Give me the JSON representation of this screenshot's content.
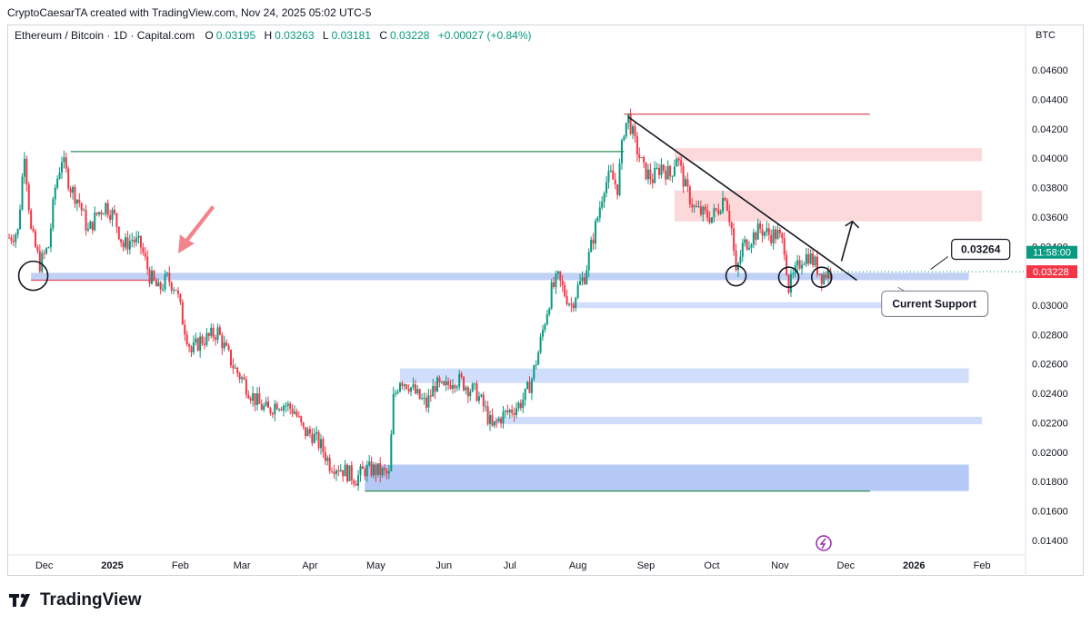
{
  "header": {
    "attribution": "CryptoCaesarTA created with TradingView.com, Nov 24, 2025 05:02 UTC-5"
  },
  "symbol": {
    "name": "Ethereum / Bitcoin · 1D · Capital.com",
    "open_label": "O",
    "open": "0.03195",
    "high_label": "H",
    "high": "0.03263",
    "low_label": "L",
    "low": "0.03181",
    "close_label": "C",
    "close": "0.03228",
    "change": "+0.00027 (+0.84%)"
  },
  "currency": "BTC",
  "footer": {
    "brand": "TradingView",
    "logo_icon": "tradingview-logo-icon"
  },
  "colors": {
    "up": "#089981",
    "down": "#f23645",
    "zone_blue": "#b6c9f5",
    "zone_red": "#fbd3d5",
    "line_green": "#2e8b57",
    "line_red": "#e05060",
    "arrow_red": "#f0777f"
  },
  "chart_data": {
    "type": "candlestick",
    "title": "Ethereum / Bitcoin · 1D · Capital.com",
    "ylim": [
      0.013,
      0.0478
    ],
    "yticks": [
      "0.04600",
      "0.04400",
      "0.04200",
      "0.04000",
      "0.03800",
      "0.03600",
      "0.03400",
      "0.03000",
      "0.02800",
      "0.02600",
      "0.02400",
      "0.02200",
      "0.02000",
      "0.01800",
      "0.01600",
      "0.01400"
    ],
    "x_axis": {
      "start": "2024-11-15",
      "end": "2026-02-20",
      "ticks": [
        {
          "label": "Dec",
          "date": "2024-12-01"
        },
        {
          "label": "2025",
          "date": "2025-01-01",
          "bold": true
        },
        {
          "label": "Feb",
          "date": "2025-02-01"
        },
        {
          "label": "Mar",
          "date": "2025-03-01"
        },
        {
          "label": "Apr",
          "date": "2025-04-01"
        },
        {
          "label": "May",
          "date": "2025-05-01"
        },
        {
          "label": "Jun",
          "date": "2025-06-01"
        },
        {
          "label": "Jul",
          "date": "2025-07-01"
        },
        {
          "label": "Aug",
          "date": "2025-08-01"
        },
        {
          "label": "Sep",
          "date": "2025-09-01"
        },
        {
          "label": "Oct",
          "date": "2025-10-01"
        },
        {
          "label": "Nov",
          "date": "2025-11-01"
        },
        {
          "label": "Dec",
          "date": "2025-12-01"
        },
        {
          "label": "2026",
          "date": "2026-01-01",
          "bold": true
        },
        {
          "label": "Feb",
          "date": "2026-02-01"
        }
      ]
    },
    "price_path": [
      [
        "2024-11-15",
        0.0346
      ],
      [
        "2024-11-19",
        0.035
      ],
      [
        "2024-11-22",
        0.0405
      ],
      [
        "2024-11-25",
        0.035
      ],
      [
        "2024-11-29",
        0.0328
      ],
      [
        "2024-12-03",
        0.034
      ],
      [
        "2024-12-06",
        0.038
      ],
      [
        "2024-12-09",
        0.04
      ],
      [
        "2024-12-13",
        0.038
      ],
      [
        "2024-12-17",
        0.037
      ],
      [
        "2024-12-21",
        0.035
      ],
      [
        "2024-12-25",
        0.0362
      ],
      [
        "2024-12-29",
        0.0368
      ],
      [
        "2025-01-02",
        0.036
      ],
      [
        "2025-01-06",
        0.034
      ],
      [
        "2025-01-10",
        0.0345
      ],
      [
        "2025-01-14",
        0.034
      ],
      [
        "2025-01-18",
        0.032
      ],
      [
        "2025-01-22",
        0.031
      ],
      [
        "2025-01-26",
        0.0318
      ],
      [
        "2025-01-30",
        0.0312
      ],
      [
        "2025-02-02",
        0.029
      ],
      [
        "2025-02-06",
        0.0268
      ],
      [
        "2025-02-10",
        0.0276
      ],
      [
        "2025-02-14",
        0.0278
      ],
      [
        "2025-02-18",
        0.0282
      ],
      [
        "2025-02-22",
        0.0268
      ],
      [
        "2025-02-26",
        0.0256
      ],
      [
        "2025-03-01",
        0.025
      ],
      [
        "2025-03-05",
        0.024
      ],
      [
        "2025-03-09",
        0.0232
      ],
      [
        "2025-03-13",
        0.0228
      ],
      [
        "2025-03-17",
        0.0234
      ],
      [
        "2025-03-21",
        0.0232
      ],
      [
        "2025-03-25",
        0.0228
      ],
      [
        "2025-03-29",
        0.0214
      ],
      [
        "2025-04-02",
        0.0212
      ],
      [
        "2025-04-06",
        0.0204
      ],
      [
        "2025-04-10",
        0.0192
      ],
      [
        "2025-04-14",
        0.019
      ],
      [
        "2025-04-18",
        0.0186
      ],
      [
        "2025-04-22",
        0.0182
      ],
      [
        "2025-04-26",
        0.0188
      ],
      [
        "2025-04-30",
        0.0188
      ],
      [
        "2025-05-04",
        0.0186
      ],
      [
        "2025-05-07",
        0.0184
      ],
      [
        "2025-05-09",
        0.0236
      ],
      [
        "2025-05-12",
        0.025
      ],
      [
        "2025-05-16",
        0.0246
      ],
      [
        "2025-05-20",
        0.0238
      ],
      [
        "2025-05-24",
        0.0232
      ],
      [
        "2025-05-28",
        0.0246
      ],
      [
        "2025-06-01",
        0.0242
      ],
      [
        "2025-06-05",
        0.025
      ],
      [
        "2025-06-09",
        0.0248
      ],
      [
        "2025-06-12",
        0.0244
      ],
      [
        "2025-06-16",
        0.024
      ],
      [
        "2025-06-20",
        0.0228
      ],
      [
        "2025-06-23",
        0.0216
      ],
      [
        "2025-06-27",
        0.0224
      ],
      [
        "2025-07-01",
        0.0228
      ],
      [
        "2025-07-05",
        0.0232
      ],
      [
        "2025-07-08",
        0.0238
      ],
      [
        "2025-07-11",
        0.025
      ],
      [
        "2025-07-14",
        0.0268
      ],
      [
        "2025-07-17",
        0.029
      ],
      [
        "2025-07-20",
        0.031
      ],
      [
        "2025-07-23",
        0.0318
      ],
      [
        "2025-07-26",
        0.0308
      ],
      [
        "2025-07-29",
        0.03
      ],
      [
        "2025-08-01",
        0.0312
      ],
      [
        "2025-08-04",
        0.032
      ],
      [
        "2025-08-07",
        0.034
      ],
      [
        "2025-08-10",
        0.036
      ],
      [
        "2025-08-13",
        0.0382
      ],
      [
        "2025-08-16",
        0.0388
      ],
      [
        "2025-08-19",
        0.038
      ],
      [
        "2025-08-22",
        0.042
      ],
      [
        "2025-08-24",
        0.0428
      ],
      [
        "2025-08-27",
        0.041
      ],
      [
        "2025-08-31",
        0.0392
      ],
      [
        "2025-09-04",
        0.0386
      ],
      [
        "2025-09-08",
        0.0395
      ],
      [
        "2025-09-12",
        0.0388
      ],
      [
        "2025-09-15",
        0.0402
      ],
      [
        "2025-09-19",
        0.038
      ],
      [
        "2025-09-23",
        0.0366
      ],
      [
        "2025-09-27",
        0.0362
      ],
      [
        "2025-10-01",
        0.036
      ],
      [
        "2025-10-04",
        0.0366
      ],
      [
        "2025-10-07",
        0.0376
      ],
      [
        "2025-10-10",
        0.0352
      ],
      [
        "2025-10-12",
        0.032
      ],
      [
        "2025-10-15",
        0.034
      ],
      [
        "2025-10-19",
        0.0346
      ],
      [
        "2025-10-23",
        0.0352
      ],
      [
        "2025-10-27",
        0.0348
      ],
      [
        "2025-10-31",
        0.0348
      ],
      [
        "2025-11-03",
        0.034
      ],
      [
        "2025-11-05",
        0.0312
      ],
      [
        "2025-11-08",
        0.0322
      ],
      [
        "2025-11-11",
        0.0332
      ],
      [
        "2025-11-14",
        0.0334
      ],
      [
        "2025-11-17",
        0.0328
      ],
      [
        "2025-11-20",
        0.032
      ],
      [
        "2025-11-24",
        0.03228
      ]
    ],
    "levels": [
      {
        "name": "green-resistance-line",
        "y": 0.04045,
        "from": "2024-12-13",
        "to": "2025-08-22",
        "color": "#2e8b57"
      },
      {
        "name": "red-top-line",
        "y": 0.043,
        "from": "2025-08-22",
        "to": "2025-12-12",
        "color": "#e05060"
      },
      {
        "name": "green-bottom-line",
        "y": 0.01735,
        "from": "2025-04-26",
        "to": "2025-12-12",
        "color": "#2e8b57"
      },
      {
        "name": "red-base-line",
        "y": 0.0317,
        "from": "2024-11-25",
        "to": "2025-01-20",
        "color": "#e05060"
      }
    ],
    "zones": [
      {
        "name": "current-support-zone",
        "y1": 0.0317,
        "y2": 0.0322,
        "from": "2024-11-25",
        "to": "2026-01-26",
        "fill": "#b6c9f5"
      },
      {
        "name": "support-zone-0300",
        "y1": 0.0298,
        "y2": 0.0302,
        "from": "2025-07-29",
        "to": "2026-02-01",
        "fill": "#c9d8fa"
      },
      {
        "name": "support-zone-0252",
        "y1": 0.0247,
        "y2": 0.0257,
        "from": "2025-05-12",
        "to": "2026-01-26",
        "fill": "#c9d8fa"
      },
      {
        "name": "support-zone-0224",
        "y1": 0.0219,
        "y2": 0.0224,
        "from": "2025-06-24",
        "to": "2026-02-01",
        "fill": "#c9d8fa"
      },
      {
        "name": "support-zone-0183",
        "y1": 0.01735,
        "y2": 0.01915,
        "from": "2025-04-26",
        "to": "2026-01-26",
        "fill": "#a8c0f5"
      },
      {
        "name": "resistance-zone-0402",
        "y1": 0.0398,
        "y2": 0.0407,
        "from": "2025-09-14",
        "to": "2026-02-01",
        "fill": "#fbd3d5"
      },
      {
        "name": "resistance-zone-0370",
        "y1": 0.0357,
        "y2": 0.0378,
        "from": "2025-09-14",
        "to": "2026-02-01",
        "fill": "#fbd3d5"
      }
    ],
    "trendline": {
      "from": [
        "2025-08-24",
        0.0428
      ],
      "to": [
        "2025-12-06",
        0.0317
      ]
    },
    "projection_arrow": {
      "points": [
        [
          "2025-11-29",
          0.033
        ],
        [
          "2025-12-04",
          0.0357
        ],
        [
          "2025-12-05",
          0.036
        ]
      ]
    },
    "circles": [
      {
        "date": "2024-11-26",
        "price": 0.032
      },
      {
        "date": "2025-10-12",
        "price": 0.032
      },
      {
        "date": "2025-11-05",
        "price": 0.0319
      },
      {
        "date": "2025-11-20",
        "price": 0.0319
      }
    ],
    "annotations": [
      {
        "name": "price-callout",
        "text": "0.03264",
        "date": "2026-01-19",
        "price": 0.0338
      },
      {
        "name": "current-support-label",
        "text": "Current Support",
        "date": "2026-01-07",
        "price": 0.0301
      }
    ],
    "price_tags": [
      {
        "name": "countdown-tag",
        "text": "11:58:00",
        "price": 0.0336,
        "color": "#089981"
      },
      {
        "name": "last-price-tag",
        "text": "0.03228",
        "price": 0.03228,
        "color": "#f23645"
      }
    ]
  }
}
